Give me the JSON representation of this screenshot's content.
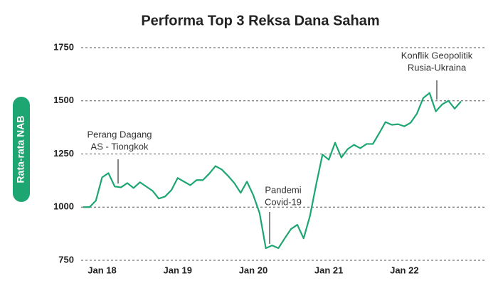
{
  "chart_data": {
    "type": "line",
    "title": "Performa Top 3 Reksa Dana Saham",
    "y_label": "Rata-rata NAB",
    "categories": [
      null,
      null,
      null,
      "Jan 18",
      null,
      null,
      null,
      null,
      null,
      null,
      null,
      null,
      null,
      null,
      null,
      "Jan 19",
      null,
      null,
      null,
      null,
      null,
      null,
      null,
      null,
      null,
      null,
      null,
      "Jan 20",
      null,
      null,
      null,
      null,
      null,
      null,
      null,
      null,
      null,
      null,
      null,
      "Jan 21",
      null,
      null,
      null,
      null,
      null,
      null,
      null,
      null,
      null,
      null,
      null,
      "Jan 22",
      null,
      null,
      null,
      null,
      null,
      null,
      null,
      null,
      null
    ],
    "series": [
      {
        "name": "Rata-rata NAB",
        "color": "#1ea672",
        "values": [
          1000,
          1000,
          1030,
          1140,
          1160,
          1097,
          1093,
          1113,
          1090,
          1117,
          1097,
          1077,
          1040,
          1050,
          1080,
          1137,
          1120,
          1103,
          1127,
          1127,
          1157,
          1193,
          1177,
          1147,
          1113,
          1067,
          1120,
          1057,
          973,
          807,
          820,
          807,
          853,
          897,
          917,
          853,
          957,
          1107,
          1247,
          1223,
          1303,
          1233,
          1273,
          1293,
          1277,
          1297,
          1297,
          1347,
          1400,
          1387,
          1390,
          1380,
          1397,
          1440,
          1513,
          1537,
          1450,
          1483,
          1500,
          1463,
          1497
        ]
      }
    ],
    "ylim": [
      750,
      1750
    ],
    "yticks": [
      750,
      1000,
      1250,
      1500,
      1750
    ],
    "grid": true,
    "annotations": [
      {
        "lines": [
          "Perang Dagang",
          "AS - Tiongkok"
        ]
      },
      {
        "lines": [
          "Pandemi",
          "Covid-19"
        ]
      },
      {
        "lines": [
          "Konflik Geopolitik",
          "Rusia-Ukraina"
        ]
      }
    ]
  }
}
